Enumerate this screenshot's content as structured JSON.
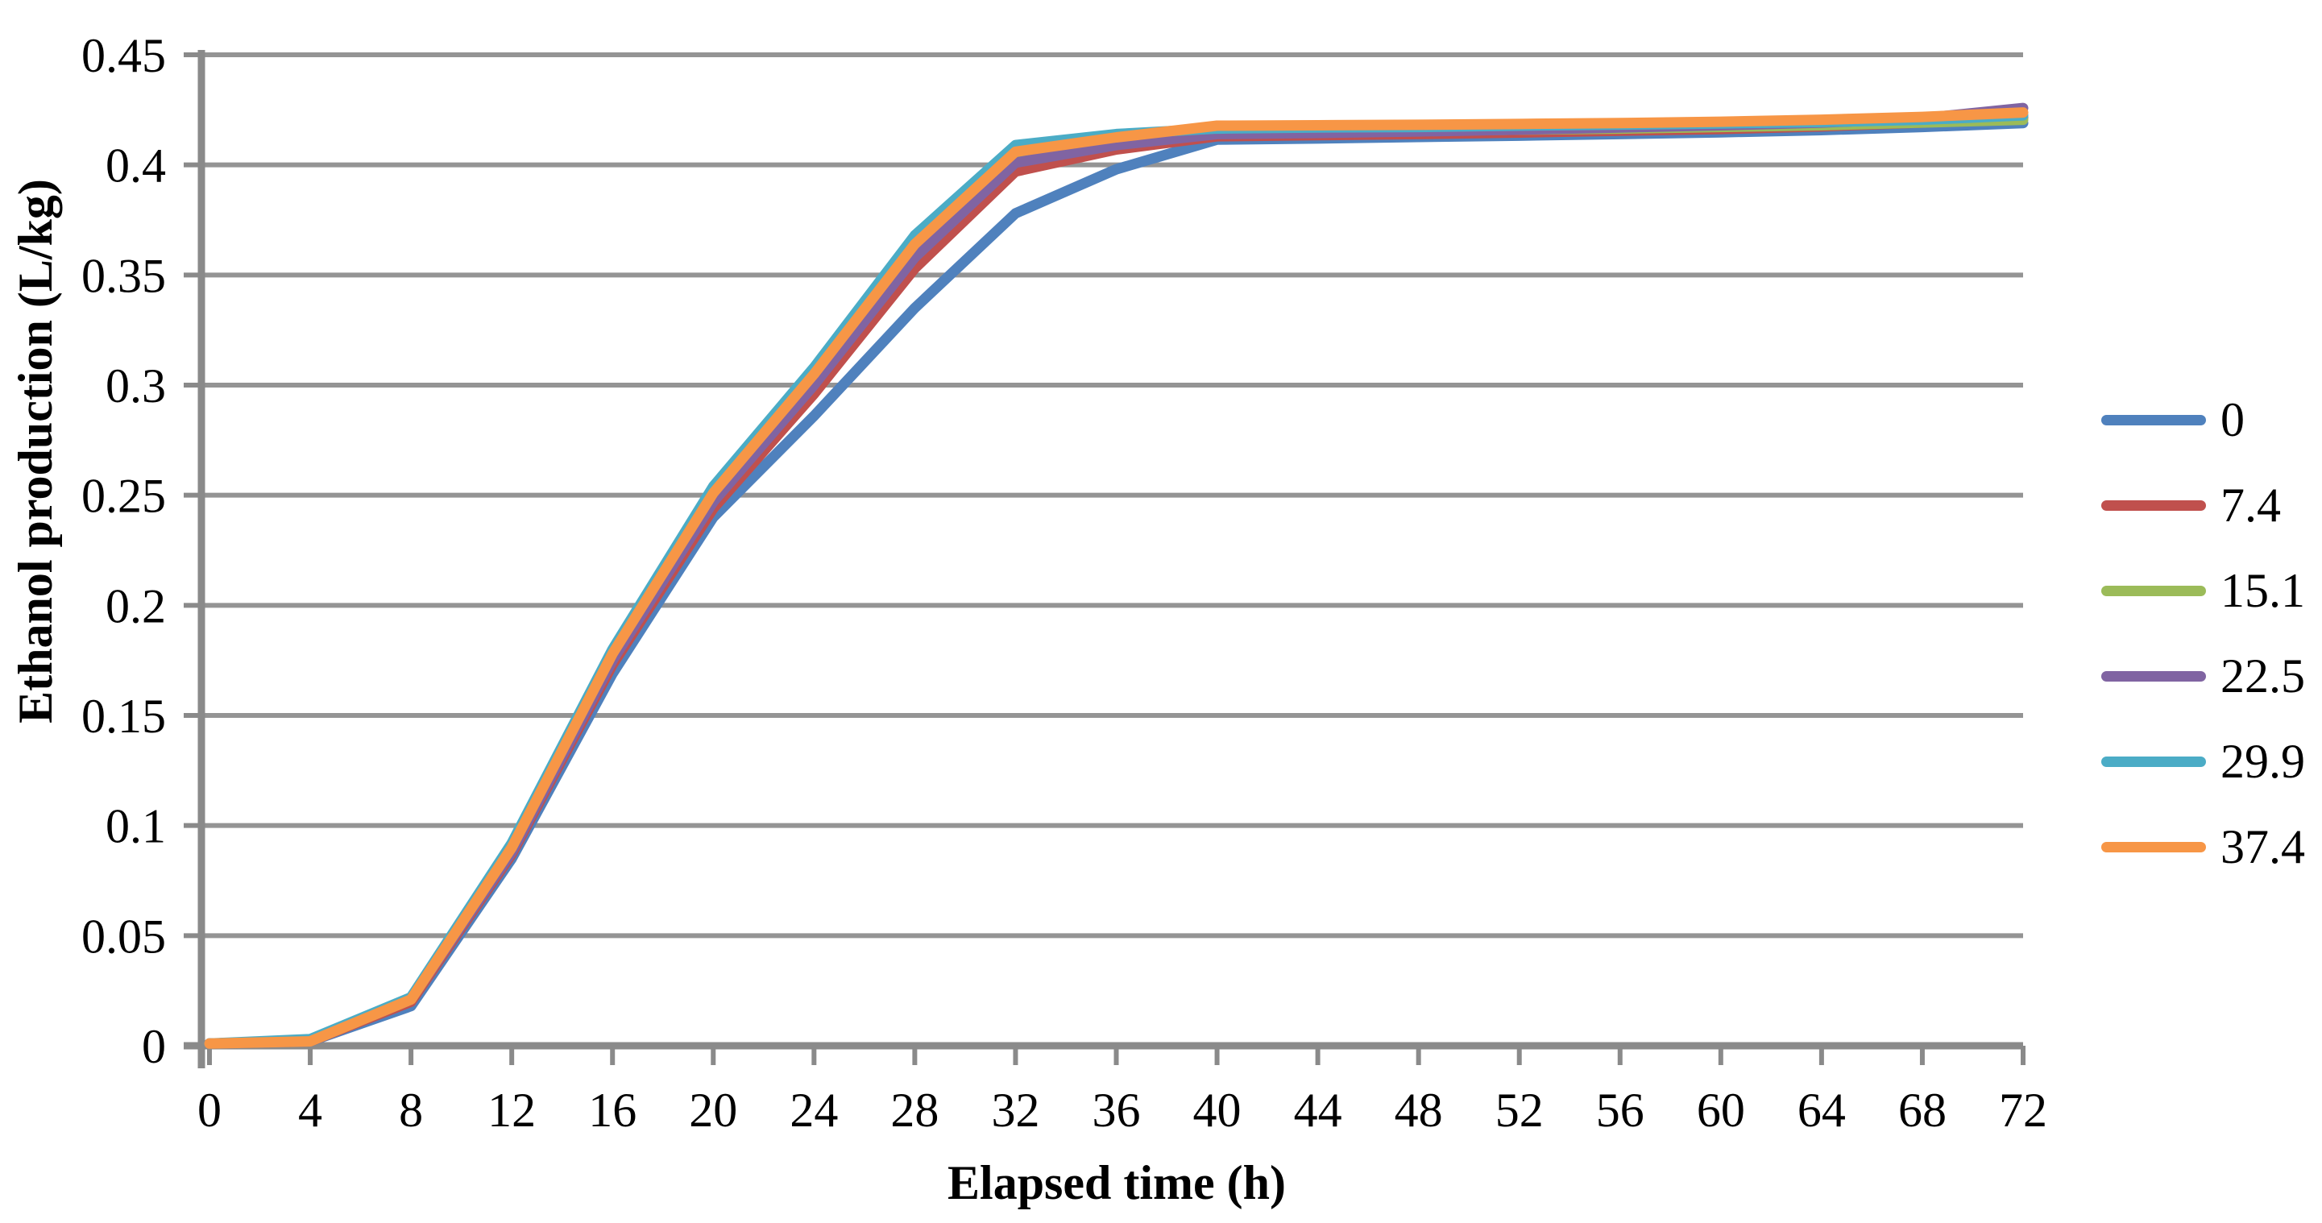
{
  "chart_data": {
    "type": "line",
    "title": "",
    "xlabel": "Elapsed time (h)",
    "ylabel": "Ethanol production (L/kg)",
    "xlim": [
      0,
      72
    ],
    "ylim": [
      0,
      0.45
    ],
    "grid": "horizontal",
    "legend_position": "right",
    "x": [
      0,
      4,
      8,
      12,
      16,
      20,
      24,
      28,
      32,
      36,
      40,
      44,
      48,
      52,
      56,
      60,
      64,
      68,
      72
    ],
    "x_ticks": [
      {
        "value": 0,
        "label": "0"
      },
      {
        "value": 4,
        "label": "4"
      },
      {
        "value": 8,
        "label": "8"
      },
      {
        "value": 12,
        "label": "12"
      },
      {
        "value": 16,
        "label": "16"
      },
      {
        "value": 20,
        "label": "20"
      },
      {
        "value": 24,
        "label": "24"
      },
      {
        "value": 28,
        "label": "28"
      },
      {
        "value": 32,
        "label": "32"
      },
      {
        "value": 36,
        "label": "36"
      },
      {
        "value": 40,
        "label": "40"
      },
      {
        "value": 44,
        "label": "44"
      },
      {
        "value": 48,
        "label": "48"
      },
      {
        "value": 52,
        "label": "52"
      },
      {
        "value": 56,
        "label": "56"
      },
      {
        "value": 60,
        "label": "60"
      },
      {
        "value": 64,
        "label": "64"
      },
      {
        "value": 68,
        "label": "68"
      },
      {
        "value": 72,
        "label": "72"
      }
    ],
    "y_ticks": [
      {
        "value": 0,
        "label": "0"
      },
      {
        "value": 0.05,
        "label": "0.05"
      },
      {
        "value": 0.1,
        "label": "0.1"
      },
      {
        "value": 0.15,
        "label": "0.15"
      },
      {
        "value": 0.2,
        "label": "0.2"
      },
      {
        "value": 0.25,
        "label": "0.25"
      },
      {
        "value": 0.3,
        "label": "0.3"
      },
      {
        "value": 0.35,
        "label": "0.35"
      },
      {
        "value": 0.4,
        "label": "0.4"
      },
      {
        "value": 0.45,
        "label": "0.45"
      }
    ],
    "series": [
      {
        "name": "0",
        "color": "#4F81BD",
        "values": [
          0.001,
          0.002,
          0.018,
          0.085,
          0.169,
          0.24,
          0.286,
          0.335,
          0.378,
          0.398,
          0.4115,
          0.412,
          0.4127,
          0.4133,
          0.414,
          0.4148,
          0.4158,
          0.4172,
          0.419
        ]
      },
      {
        "name": "7.4",
        "color": "#C0504D",
        "values": [
          0.001,
          0.002,
          0.02,
          0.087,
          0.173,
          0.244,
          0.296,
          0.353,
          0.397,
          0.407,
          0.413,
          0.4135,
          0.414,
          0.4147,
          0.4155,
          0.4163,
          0.4175,
          0.4192,
          0.4215
        ]
      },
      {
        "name": "15.1",
        "color": "#9BBB59",
        "values": [
          0.001,
          0.002,
          0.021,
          0.089,
          0.176,
          0.249,
          0.302,
          0.361,
          0.403,
          0.411,
          0.415,
          0.4152,
          0.4155,
          0.416,
          0.4165,
          0.4172,
          0.418,
          0.4192,
          0.4205
        ]
      },
      {
        "name": "22.5",
        "color": "#8064A2",
        "values": [
          0.001,
          0.002,
          0.021,
          0.088,
          0.175,
          0.247,
          0.3,
          0.358,
          0.401,
          0.409,
          0.414,
          0.4145,
          0.4152,
          0.416,
          0.417,
          0.418,
          0.4192,
          0.4212,
          0.4258
        ]
      },
      {
        "name": "29.9",
        "color": "#4BACC6",
        "values": [
          0.001,
          0.003,
          0.022,
          0.092,
          0.18,
          0.254,
          0.308,
          0.368,
          0.409,
          0.414,
          0.4165,
          0.417,
          0.4172,
          0.4178,
          0.4183,
          0.4188,
          0.4195,
          0.4205,
          0.4225
        ]
      },
      {
        "name": "37.4",
        "color": "#F79646",
        "values": [
          0.001,
          0.002,
          0.021,
          0.09,
          0.178,
          0.251,
          0.305,
          0.364,
          0.406,
          0.4125,
          0.4178,
          0.418,
          0.4182,
          0.4186,
          0.419,
          0.4196,
          0.4205,
          0.4218,
          0.4238
        ]
      }
    ],
    "colors": {
      "gridline": "#949494",
      "axis": "#8A8A8A",
      "text": "#000000",
      "background": "#FFFFFF"
    }
  }
}
